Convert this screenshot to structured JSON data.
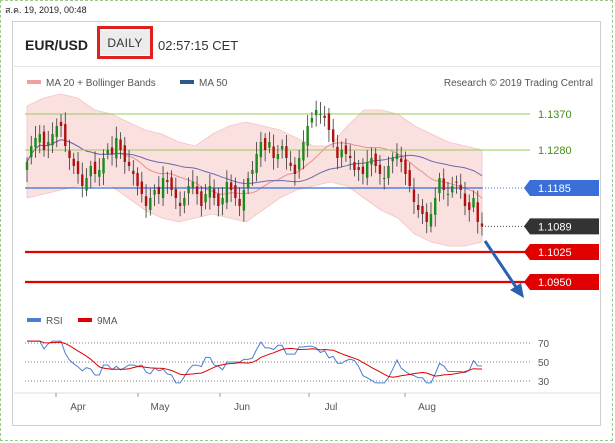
{
  "header": {
    "timestamp": "ส.ค. 19, 2019, 00:48",
    "symbol": "EUR/USD",
    "timeframe": "DAILY",
    "time": "02:57:15 CET"
  },
  "legend": {
    "ma20": "MA 20 + Bollinger Bands",
    "ma50": "MA 50",
    "credit": "Research © 2019 Trading Central",
    "rsi": "RSI",
    "rsi_ma": "9MA"
  },
  "colors": {
    "candle_up": "#1a8a1a",
    "candle_down": "#b01010",
    "band_fill": "#fbe0e0",
    "ma20": "#e8908f",
    "ma50": "#6a6aaa",
    "support": "#e00000",
    "pivot": "#3a6fd8",
    "resistance": "#9acb5a",
    "last_price": "#333333",
    "arrow": "#2a60b0"
  },
  "chart_data": {
    "type": "candlestick",
    "price_axis": {
      "ylim": [
        1.088,
        1.143
      ]
    },
    "months": [
      "Apr",
      "May",
      "Jun",
      "Jul",
      "Aug"
    ],
    "levels": [
      {
        "role": "resistance",
        "label": "1.1370",
        "value": 1.137
      },
      {
        "role": "resistance",
        "label": "1.1280",
        "value": 1.128
      },
      {
        "role": "pivot",
        "label": "1.1185",
        "value": 1.1185
      },
      {
        "role": "last",
        "label": "1.1089",
        "value": 1.1089
      },
      {
        "role": "support",
        "label": "1.1025",
        "value": 1.1025
      },
      {
        "role": "support",
        "label": "1.0950",
        "value": 1.095
      }
    ],
    "close": [
      1.125,
      1.129,
      1.131,
      1.132,
      1.128,
      1.13,
      1.132,
      1.134,
      1.134,
      1.129,
      1.126,
      1.124,
      1.122,
      1.119,
      1.121,
      1.124,
      1.122,
      1.123,
      1.126,
      1.128,
      1.127,
      1.131,
      1.128,
      1.125,
      1.124,
      1.122,
      1.119,
      1.117,
      1.114,
      1.116,
      1.118,
      1.117,
      1.121,
      1.12,
      1.118,
      1.116,
      1.114,
      1.116,
      1.119,
      1.12,
      1.117,
      1.114,
      1.117,
      1.119,
      1.116,
      1.114,
      1.116,
      1.12,
      1.118,
      1.116,
      1.114,
      1.118,
      1.121,
      1.123,
      1.127,
      1.13,
      1.128,
      1.13,
      1.126,
      1.127,
      1.129,
      1.126,
      1.124,
      1.122,
      1.126,
      1.13,
      1.134,
      1.136,
      1.138,
      1.137,
      1.136,
      1.133,
      1.13,
      1.126,
      1.128,
      1.127,
      1.126,
      1.123,
      1.123,
      1.122,
      1.125,
      1.126,
      1.124,
      1.122,
      1.121,
      1.124,
      1.126,
      1.127,
      1.125,
      1.122,
      1.119,
      1.115,
      1.113,
      1.112,
      1.11,
      1.112,
      1.116,
      1.121,
      1.118,
      1.117,
      1.119,
      1.12,
      1.118,
      1.114,
      1.113,
      1.116,
      1.11,
      1.1089
    ],
    "bollinger": {
      "upper": [
        1.139,
        1.141,
        1.142,
        1.141,
        1.138,
        1.137,
        1.135,
        1.133,
        1.132,
        1.13,
        1.129,
        1.132,
        1.134,
        1.135,
        1.134,
        1.133,
        1.131,
        1.129,
        1.129,
        1.134,
        1.138,
        1.138,
        1.137,
        1.134,
        1.132,
        1.13,
        1.129,
        1.128
      ],
      "lower": [
        1.116,
        1.117,
        1.118,
        1.119,
        1.119,
        1.119,
        1.116,
        1.113,
        1.111,
        1.11,
        1.111,
        1.112,
        1.111,
        1.11,
        1.113,
        1.116,
        1.118,
        1.119,
        1.12,
        1.119,
        1.116,
        1.113,
        1.111,
        1.107,
        1.105,
        1.104,
        1.104,
        1.105
      ]
    },
    "rsi": {
      "ylim": [
        20,
        80
      ],
      "ticks": [
        70,
        50,
        30
      ]
    }
  }
}
